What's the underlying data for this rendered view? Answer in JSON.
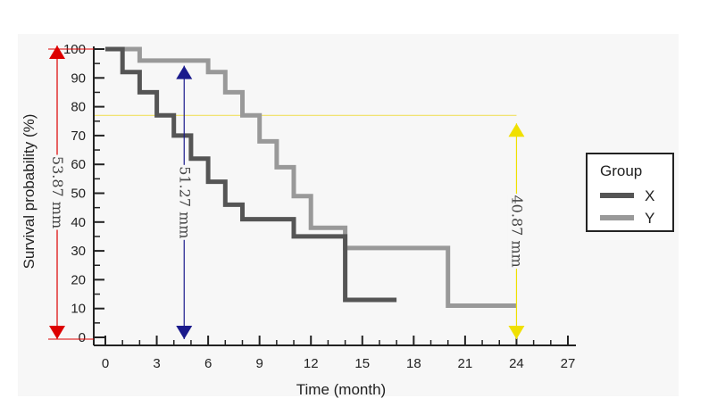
{
  "chart_data": {
    "type": "line",
    "step": true,
    "title": "",
    "xlabel": "Time (month)",
    "ylabel": "Survival probability (%)",
    "xlim": [
      0,
      27
    ],
    "ylim": [
      0,
      100
    ],
    "xticks": [
      0,
      3,
      6,
      9,
      12,
      15,
      18,
      21,
      24,
      27
    ],
    "yticks": [
      0,
      10,
      20,
      30,
      40,
      50,
      60,
      70,
      80,
      90,
      100
    ],
    "legend": {
      "title": "Group",
      "position": "right",
      "entries": [
        {
          "name": "X",
          "color": "#555555"
        },
        {
          "name": "Y",
          "color": "#999999"
        }
      ]
    },
    "series": [
      {
        "name": "X",
        "color": "#555555",
        "points": [
          [
            0,
            100
          ],
          [
            1,
            100
          ],
          [
            1,
            92
          ],
          [
            2,
            92
          ],
          [
            2,
            85
          ],
          [
            3,
            85
          ],
          [
            3,
            77
          ],
          [
            4,
            77
          ],
          [
            4,
            70
          ],
          [
            5,
            70
          ],
          [
            5,
            62
          ],
          [
            6,
            62
          ],
          [
            6,
            54
          ],
          [
            7,
            54
          ],
          [
            7,
            46
          ],
          [
            8,
            46
          ],
          [
            8,
            41
          ],
          [
            11,
            41
          ],
          [
            11,
            35
          ],
          [
            14,
            35
          ],
          [
            14,
            13
          ],
          [
            17,
            13
          ]
        ]
      },
      {
        "name": "Y",
        "color": "#999999",
        "points": [
          [
            0,
            100
          ],
          [
            2,
            100
          ],
          [
            2,
            96
          ],
          [
            6,
            96
          ],
          [
            6,
            92
          ],
          [
            7,
            92
          ],
          [
            7,
            85
          ],
          [
            8,
            85
          ],
          [
            8,
            77
          ],
          [
            9,
            77
          ],
          [
            9,
            68
          ],
          [
            10,
            68
          ],
          [
            10,
            59
          ],
          [
            11,
            59
          ],
          [
            11,
            49
          ],
          [
            12,
            49
          ],
          [
            12,
            38
          ],
          [
            14,
            38
          ],
          [
            14,
            31
          ],
          [
            20,
            31
          ],
          [
            20,
            11
          ],
          [
            24,
            11
          ]
        ]
      }
    ],
    "reference_line": {
      "y": 77,
      "x_end": 24,
      "color": "#f0e060"
    },
    "annotations": [
      {
        "label": "53.87 mm",
        "color": "#dd0000",
        "x": -2.8,
        "y_from": 0,
        "y_to": 100
      },
      {
        "label": "51.27 mm",
        "color": "#1a1a8c",
        "x": 4.6,
        "y_from": 0,
        "y_to": 93
      },
      {
        "label": "40.87 mm",
        "color": "#f0e000",
        "x": 24,
        "y_from": 0,
        "y_to": 73
      }
    ]
  }
}
